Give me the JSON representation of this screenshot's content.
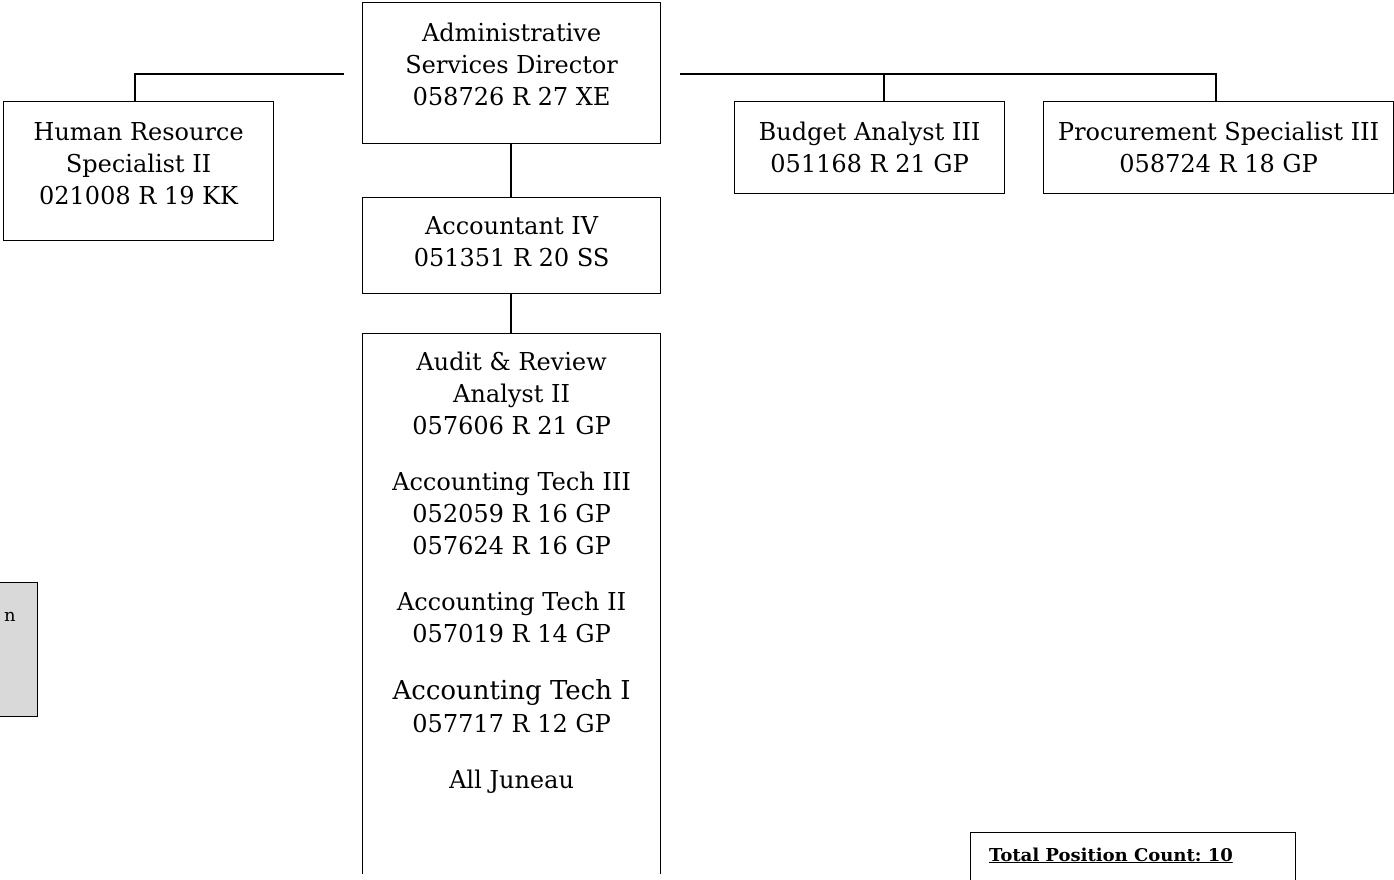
{
  "director": {
    "title_line1": "Administrative",
    "title_line2": "Services Director",
    "code": "058726  R 27 XE"
  },
  "hr_specialist": {
    "title_line1": "Human Resource",
    "title_line2": "Specialist II",
    "code": "021008  R 19 KK"
  },
  "budget_analyst": {
    "title": "Budget Analyst III",
    "code": "051168  R 21 GP"
  },
  "procurement": {
    "title": "Procurement Specialist III",
    "code": "058724  R 18 GP"
  },
  "accountant": {
    "title": "Accountant IV",
    "code": "051351  R 20 SS"
  },
  "staff_unit": {
    "audit_title_line1": "Audit & Review",
    "audit_title_line2": "Analyst II",
    "audit_code": "057606  R 21 GP",
    "tech3_title": "Accounting Tech III",
    "tech3_codes": [
      "052059  R 16 GP",
      "057624  R 16 GP"
    ],
    "tech2_title": "Accounting Tech II",
    "tech2_code": "057019  R 14  GP",
    "tech1_title": "Accounting Tech I",
    "tech1_code": "057717  R 12  GP",
    "location": "All Juneau"
  },
  "legend": {
    "fragment": "n"
  },
  "total": {
    "label": "Total Position Count: 10"
  }
}
